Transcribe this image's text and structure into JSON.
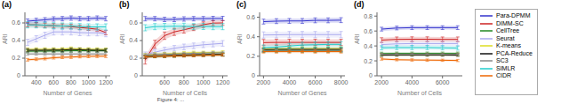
{
  "chart_data": [
    {
      "type": "line",
      "title": "(a)",
      "x_label": "Number of Genes",
      "y_label": "ARI",
      "grid": false,
      "annotations": [
        "Figure 4: ..."
      ],
      "x": [
        300,
        400,
        500,
        600,
        700,
        800,
        900,
        1000,
        1100,
        1200
      ],
      "xlim": [
        270,
        1250
      ],
      "xticks": [
        400,
        600,
        800,
        1000,
        1200
      ],
      "ylim": [
        0,
        0.72
      ],
      "yticks": [
        0,
        0.2,
        0.4,
        0.6
      ],
      "series": [
        {
          "name": "Para-DPMM",
          "color": "#3333cc",
          "values": [
            0.62,
            0.628,
            0.635,
            0.645,
            0.648,
            0.655,
            0.648,
            0.648,
            0.655,
            0.648
          ],
          "error": [
            0.025,
            0.025,
            0.025,
            0.025,
            0.025,
            0.025,
            0.025,
            0.025,
            0.025,
            0.025
          ]
        },
        {
          "name": "DIMM-SC",
          "color": "#cc2222",
          "values": [
            0.58,
            0.578,
            0.572,
            0.568,
            0.565,
            0.558,
            0.548,
            0.54,
            0.528,
            0.49
          ],
          "error": [
            0.025,
            0.025,
            0.025,
            0.025,
            0.025,
            0.025,
            0.025,
            0.025,
            0.025,
            0.025
          ]
        },
        {
          "name": "CellTree",
          "color": "#228822",
          "values": [
            0.278,
            0.28,
            0.28,
            0.282,
            0.282,
            0.285,
            0.285,
            0.285,
            0.285,
            0.285
          ],
          "error": [
            0.018,
            0.018,
            0.018,
            0.018,
            0.018,
            0.018,
            0.018,
            0.018,
            0.018,
            0.018
          ]
        },
        {
          "name": "Seurat",
          "color": "#aaaaee",
          "values": [
            0.38,
            0.42,
            0.46,
            0.498,
            0.498,
            0.498,
            0.49,
            0.488,
            0.488,
            0.478
          ],
          "error": [
            0.035,
            0.035,
            0.035,
            0.035,
            0.035,
            0.035,
            0.035,
            0.035,
            0.035,
            0.035
          ]
        },
        {
          "name": "K-means",
          "color": "#dddd22",
          "values": [
            0.298,
            0.3,
            0.3,
            0.3,
            0.302,
            0.31,
            0.302,
            0.3,
            0.3,
            0.298
          ],
          "error": [
            0.018,
            0.018,
            0.018,
            0.018,
            0.018,
            0.018,
            0.018,
            0.018,
            0.018,
            0.018
          ]
        },
        {
          "name": "PCA-Reduce",
          "color": "#111111",
          "values": [
            0.29,
            0.29,
            0.29,
            0.292,
            0.292,
            0.298,
            0.295,
            0.292,
            0.29,
            0.29
          ],
          "error": [
            0.018,
            0.018,
            0.018,
            0.018,
            0.018,
            0.018,
            0.018,
            0.018,
            0.018,
            0.018
          ]
        },
        {
          "name": "SC3",
          "color": "#888888",
          "values": [
            0.248,
            0.248,
            0.248,
            0.248,
            0.248,
            0.248,
            0.248,
            0.248,
            0.248,
            0.248
          ],
          "error": [
            0.015,
            0.015,
            0.015,
            0.015,
            0.015,
            0.015,
            0.015,
            0.015,
            0.015,
            0.015
          ]
        },
        {
          "name": "SIMLR",
          "color": "#22cccc",
          "values": [
            0.578,
            0.578,
            0.575,
            0.568,
            0.565,
            0.565,
            0.558,
            0.555,
            0.555,
            0.555
          ],
          "error": [
            0.035,
            0.035,
            0.035,
            0.035,
            0.035,
            0.035,
            0.035,
            0.035,
            0.035,
            0.035
          ]
        },
        {
          "name": "CIDR",
          "color": "#ee6600",
          "values": [
            0.182,
            0.188,
            0.195,
            0.205,
            0.21,
            0.212,
            0.218,
            0.22,
            0.222,
            0.222
          ],
          "error": [
            0.015,
            0.015,
            0.015,
            0.015,
            0.015,
            0.015,
            0.015,
            0.015,
            0.015,
            0.015
          ]
        }
      ]
    },
    {
      "type": "line",
      "title": "(b)",
      "x_label": "Number of Cells",
      "y_label": "ARI",
      "grid": false,
      "x": [
        400,
        500,
        600,
        700,
        800,
        900,
        1000,
        1100,
        1200
      ],
      "xlim": [
        370,
        1250
      ],
      "xticks": [
        600,
        800,
        1000,
        1200
      ],
      "ylim": [
        0,
        0.72
      ],
      "yticks": [
        0,
        0.2,
        0.4,
        0.6
      ],
      "series": [
        {
          "name": "Para-DPMM",
          "color": "#3333cc",
          "values": [
            0.648,
            0.648,
            0.64,
            0.64,
            0.645,
            0.648,
            0.648,
            0.65,
            0.65
          ],
          "error": [
            0.025,
            0.025,
            0.025,
            0.025,
            0.025,
            0.025,
            0.025,
            0.025,
            0.025
          ]
        },
        {
          "name": "DIMM-SC",
          "color": "#cc2222",
          "values": [
            0.178,
            0.358,
            0.455,
            0.498,
            0.522,
            0.548,
            0.58,
            0.598,
            0.6
          ],
          "error": [
            0.045,
            0.045,
            0.042,
            0.04,
            0.038,
            0.035,
            0.032,
            0.03,
            0.028
          ]
        },
        {
          "name": "CellTree",
          "color": "#228822",
          "values": [
            0.218,
            0.222,
            0.225,
            0.228,
            0.232,
            0.235,
            0.238,
            0.24,
            0.242
          ],
          "error": [
            0.018,
            0.018,
            0.018,
            0.018,
            0.018,
            0.018,
            0.018,
            0.018,
            0.018
          ]
        },
        {
          "name": "Seurat",
          "color": "#aaaaee",
          "values": [
            0.238,
            0.268,
            0.292,
            0.312,
            0.328,
            0.34,
            0.352,
            0.36,
            0.368
          ],
          "error": [
            0.032,
            0.032,
            0.032,
            0.032,
            0.032,
            0.032,
            0.032,
            0.032,
            0.032
          ]
        },
        {
          "name": "K-means",
          "color": "#dddd22",
          "values": [
            0.235,
            0.245,
            0.248,
            0.252,
            0.258,
            0.262,
            0.262,
            0.265,
            0.268
          ],
          "error": [
            0.018,
            0.018,
            0.018,
            0.018,
            0.018,
            0.018,
            0.018,
            0.018,
            0.018
          ]
        },
        {
          "name": "PCA-Reduce",
          "color": "#111111",
          "values": [
            0.215,
            0.225,
            0.228,
            0.232,
            0.235,
            0.238,
            0.24,
            0.242,
            0.242
          ],
          "error": [
            0.018,
            0.018,
            0.018,
            0.018,
            0.018,
            0.018,
            0.018,
            0.018,
            0.018
          ]
        },
        {
          "name": "SC3",
          "color": "#888888",
          "values": [
            0.235,
            0.242,
            0.245,
            0.248,
            0.252,
            0.255,
            0.258,
            0.26,
            0.262
          ],
          "error": [
            0.015,
            0.015,
            0.015,
            0.015,
            0.015,
            0.015,
            0.015,
            0.015,
            0.015
          ]
        },
        {
          "name": "SIMLR",
          "color": "#22cccc",
          "values": [
            0.545,
            0.558,
            0.56,
            0.562,
            0.562,
            0.558,
            0.56,
            0.558,
            0.558
          ],
          "error": [
            0.035,
            0.035,
            0.035,
            0.035,
            0.035,
            0.035,
            0.035,
            0.035,
            0.035
          ]
        },
        {
          "name": "CIDR",
          "color": "#ee6600",
          "values": [
            0.215,
            0.22,
            0.222,
            0.225,
            0.228,
            0.23,
            0.232,
            0.235,
            0.238
          ],
          "error": [
            0.015,
            0.015,
            0.015,
            0.015,
            0.015,
            0.015,
            0.015,
            0.015,
            0.015
          ]
        }
      ]
    },
    {
      "type": "line",
      "title": "(c)",
      "x_label": "Number of Genes",
      "y_label": "ARI",
      "grid": false,
      "x": [
        2000,
        3000,
        4000,
        5000,
        6000,
        7000,
        8000
      ],
      "xlim": [
        1700,
        8300
      ],
      "xticks": [
        2000,
        4000,
        6000,
        8000
      ],
      "ylim": [
        0,
        0.65
      ],
      "yticks": [
        0,
        0.2,
        0.4,
        0.6
      ],
      "series": [
        {
          "name": "Para-DPMM",
          "color": "#3333cc",
          "values": [
            0.555,
            0.56,
            0.562,
            0.562,
            0.568,
            0.568,
            0.57
          ],
          "error": [
            0.025,
            0.025,
            0.025,
            0.025,
            0.025,
            0.025,
            0.025
          ]
        },
        {
          "name": "DIMM-SC",
          "color": "#cc2222",
          "values": [
            0.34,
            0.342,
            0.342,
            0.342,
            0.342,
            0.342,
            0.342
          ],
          "error": [
            0.032,
            0.032,
            0.032,
            0.032,
            0.032,
            0.032,
            0.032
          ]
        },
        {
          "name": "CellTree",
          "color": "#228822",
          "values": [
            0.258,
            0.26,
            0.26,
            0.26,
            0.26,
            0.26,
            0.26
          ],
          "error": [
            0.018,
            0.018,
            0.018,
            0.018,
            0.018,
            0.018,
            0.018
          ]
        },
        {
          "name": "Seurat",
          "color": "#aaaaee",
          "values": [
            0.418,
            0.42,
            0.422,
            0.422,
            0.422,
            0.422,
            0.422
          ],
          "error": [
            0.032,
            0.032,
            0.032,
            0.032,
            0.032,
            0.032,
            0.032
          ]
        },
        {
          "name": "K-means",
          "color": "#dddd22",
          "values": [
            0.272,
            0.275,
            0.278,
            0.278,
            0.278,
            0.278,
            0.278
          ],
          "error": [
            0.018,
            0.018,
            0.018,
            0.018,
            0.018,
            0.018,
            0.018
          ]
        },
        {
          "name": "PCA-Reduce",
          "color": "#111111",
          "values": [
            0.268,
            0.27,
            0.27,
            0.27,
            0.27,
            0.27,
            0.27
          ],
          "error": [
            0.018,
            0.018,
            0.018,
            0.018,
            0.018,
            0.018,
            0.018
          ]
        },
        {
          "name": "SC3",
          "color": "#888888",
          "values": [
            0.258,
            0.26,
            0.26,
            0.26,
            0.26,
            0.26,
            0.26
          ],
          "error": [
            0.015,
            0.015,
            0.015,
            0.015,
            0.015,
            0.015,
            0.015
          ]
        },
        {
          "name": "SIMLR",
          "color": "#22cccc",
          "values": [
            0.288,
            0.295,
            0.305,
            0.315,
            0.318,
            0.322,
            0.322
          ],
          "error": [
            0.028,
            0.028,
            0.028,
            0.028,
            0.028,
            0.028,
            0.028
          ]
        },
        {
          "name": "CIDR",
          "color": "#ee6600",
          "values": [
            0.248,
            0.248,
            0.248,
            0.248,
            0.248,
            0.248,
            0.248
          ],
          "error": [
            0.015,
            0.015,
            0.015,
            0.015,
            0.015,
            0.015,
            0.015
          ]
        }
      ]
    },
    {
      "type": "line",
      "title": "(d)",
      "x_label": "Number of Cells",
      "y_label": "ARI",
      "grid": false,
      "x": [
        2000,
        3000,
        4000,
        5000,
        6000,
        7000
      ],
      "xlim": [
        1700,
        7300
      ],
      "xticks": [
        2000,
        4000,
        6000
      ],
      "ylim": [
        0,
        0.85
      ],
      "yticks": [
        0,
        0.2,
        0.4,
        0.6,
        0.8
      ],
      "series": [
        {
          "name": "Para-DPMM",
          "color": "#3333cc",
          "values": [
            0.625,
            0.64,
            0.645,
            0.645,
            0.645,
            0.645
          ],
          "error": [
            0.025,
            0.025,
            0.025,
            0.025,
            0.025,
            0.025
          ]
        },
        {
          "name": "DIMM-SC",
          "color": "#cc2222",
          "values": [
            0.478,
            0.488,
            0.49,
            0.49,
            0.488,
            0.488
          ],
          "error": [
            0.032,
            0.032,
            0.032,
            0.032,
            0.032,
            0.032
          ]
        },
        {
          "name": "CellTree",
          "color": "#228822",
          "values": [
            0.298,
            0.3,
            0.3,
            0.3,
            0.3,
            0.3
          ],
          "error": [
            0.018,
            0.018,
            0.018,
            0.018,
            0.018,
            0.018
          ]
        },
        {
          "name": "Seurat",
          "color": "#aaaaee",
          "values": [
            0.418,
            0.428,
            0.432,
            0.432,
            0.432,
            0.432
          ],
          "error": [
            0.032,
            0.032,
            0.032,
            0.032,
            0.032,
            0.032
          ]
        },
        {
          "name": "K-means",
          "color": "#dddd22",
          "values": [
            0.282,
            0.285,
            0.285,
            0.285,
            0.285,
            0.285
          ],
          "error": [
            0.018,
            0.018,
            0.018,
            0.018,
            0.018,
            0.018
          ]
        },
        {
          "name": "PCA-Reduce",
          "color": "#111111",
          "values": [
            0.278,
            0.28,
            0.28,
            0.28,
            0.28,
            0.278
          ],
          "error": [
            0.018,
            0.018,
            0.018,
            0.018,
            0.018,
            0.018
          ]
        },
        {
          "name": "SC3",
          "color": "#888888",
          "values": [
            0.288,
            0.29,
            0.29,
            0.29,
            0.29,
            0.29
          ],
          "error": [
            0.015,
            0.015,
            0.015,
            0.015,
            0.015,
            0.015
          ]
        },
        {
          "name": "SIMLR",
          "color": "#22cccc",
          "values": [
            0.375,
            0.378,
            0.378,
            0.378,
            0.375,
            0.372
          ],
          "error": [
            0.028,
            0.028,
            0.028,
            0.028,
            0.028,
            0.028
          ]
        },
        {
          "name": "CIDR",
          "color": "#ee6600",
          "values": [
            0.225,
            0.215,
            0.212,
            0.21,
            0.208,
            0.205
          ],
          "error": [
            0.015,
            0.015,
            0.015,
            0.015,
            0.015,
            0.015
          ]
        }
      ]
    }
  ]
}
